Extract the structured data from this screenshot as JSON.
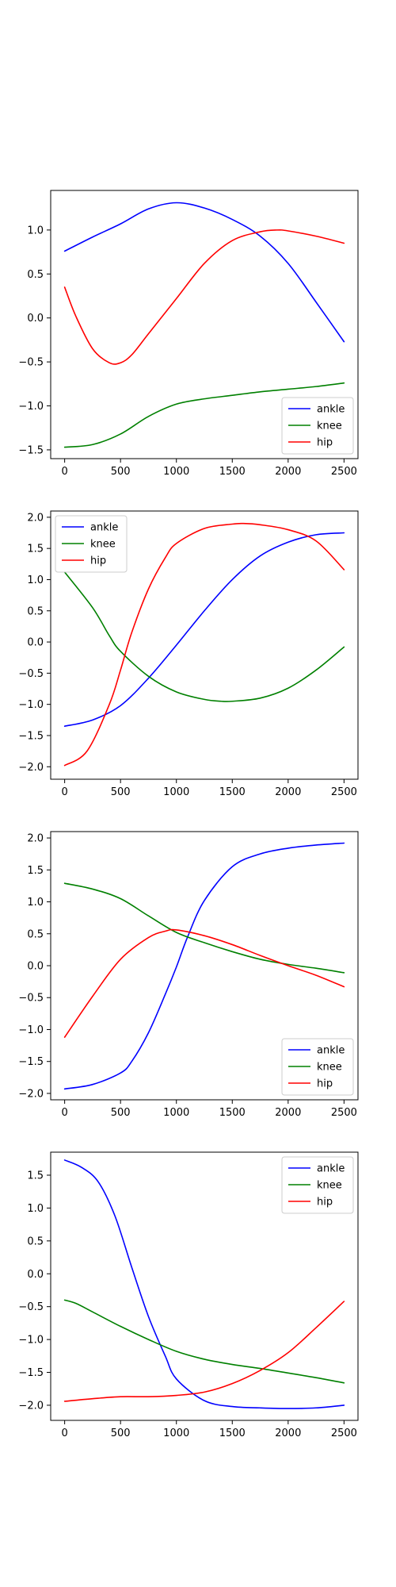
{
  "colors": {
    "ankle": "#0000ff",
    "knee": "#008000",
    "hip": "#ff0000"
  },
  "chart_data": [
    {
      "type": "line",
      "xlim": [
        -125,
        2625
      ],
      "ylim": [
        -1.6,
        1.45
      ],
      "xticks": [
        0,
        500,
        1000,
        1500,
        2000,
        2500
      ],
      "yticks": [
        -1.5,
        -1.0,
        -0.5,
        0.0,
        0.5,
        1.0
      ],
      "legend": "lower-right",
      "grid": false,
      "series": [
        {
          "name": "ankle",
          "color": "#0000ff",
          "x": [
            0,
            250,
            500,
            750,
            1000,
            1250,
            1500,
            1750,
            2000,
            2250,
            2500
          ],
          "y": [
            0.76,
            0.92,
            1.07,
            1.24,
            1.31,
            1.25,
            1.12,
            0.93,
            0.62,
            0.18,
            -0.27
          ]
        },
        {
          "name": "knee",
          "color": "#008000",
          "x": [
            0,
            250,
            500,
            750,
            1000,
            1250,
            1500,
            1750,
            2000,
            2250,
            2500
          ],
          "y": [
            -1.47,
            -1.44,
            -1.32,
            -1.12,
            -0.98,
            -0.92,
            -0.88,
            -0.84,
            -0.81,
            -0.78,
            -0.74
          ]
        },
        {
          "name": "hip",
          "color": "#ff0000",
          "x": [
            0,
            100,
            250,
            400,
            500,
            600,
            750,
            1000,
            1250,
            1500,
            1750,
            1900,
            2000,
            2250,
            2500
          ],
          "y": [
            0.35,
            0.02,
            -0.35,
            -0.51,
            -0.51,
            -0.42,
            -0.18,
            0.22,
            0.62,
            0.88,
            0.98,
            1.0,
            0.99,
            0.93,
            0.85
          ]
        }
      ]
    },
    {
      "type": "line",
      "xlim": [
        -125,
        2625
      ],
      "ylim": [
        -2.2,
        2.1
      ],
      "xticks": [
        0,
        500,
        1000,
        1500,
        2000,
        2500
      ],
      "yticks": [
        -2.0,
        -1.5,
        -1.0,
        -0.5,
        0.0,
        0.5,
        1.0,
        1.5,
        2.0
      ],
      "legend": "upper-left",
      "grid": false,
      "series": [
        {
          "name": "ankle",
          "color": "#0000ff",
          "x": [
            0,
            250,
            500,
            750,
            1000,
            1250,
            1500,
            1750,
            2000,
            2250,
            2500
          ],
          "y": [
            -1.35,
            -1.25,
            -1.02,
            -0.58,
            -0.05,
            0.5,
            1.0,
            1.38,
            1.6,
            1.72,
            1.75
          ]
        },
        {
          "name": "knee",
          "color": "#008000",
          "x": [
            0,
            250,
            400,
            500,
            750,
            1000,
            1250,
            1400,
            1500,
            1750,
            2000,
            2250,
            2500
          ],
          "y": [
            1.12,
            0.55,
            0.1,
            -0.15,
            -0.55,
            -0.8,
            -0.92,
            -0.95,
            -0.95,
            -0.9,
            -0.74,
            -0.45,
            -0.08
          ]
        },
        {
          "name": "hip",
          "color": "#ff0000",
          "x": [
            0,
            200,
            400,
            500,
            600,
            750,
            900,
            1000,
            1250,
            1500,
            1600,
            1750,
            2000,
            2250,
            2500
          ],
          "y": [
            -1.98,
            -1.75,
            -1.0,
            -0.45,
            0.15,
            0.85,
            1.35,
            1.58,
            1.82,
            1.89,
            1.9,
            1.88,
            1.8,
            1.62,
            1.16
          ]
        }
      ]
    },
    {
      "type": "line",
      "xlim": [
        -125,
        2625
      ],
      "ylim": [
        -2.1,
        2.1
      ],
      "xticks": [
        0,
        500,
        1000,
        1500,
        2000,
        2500
      ],
      "yticks": [
        -2.0,
        -1.5,
        -1.0,
        -0.5,
        0.0,
        0.5,
        1.0,
        1.5,
        2.0
      ],
      "legend": "lower-right",
      "grid": false,
      "series": [
        {
          "name": "ankle",
          "color": "#0000ff",
          "x": [
            0,
            250,
            500,
            600,
            750,
            900,
            1000,
            1100,
            1250,
            1500,
            1750,
            2000,
            2250,
            2500
          ],
          "y": [
            -1.93,
            -1.86,
            -1.68,
            -1.5,
            -1.05,
            -0.45,
            -0.02,
            0.45,
            1.02,
            1.55,
            1.75,
            1.84,
            1.89,
            1.92
          ]
        },
        {
          "name": "knee",
          "color": "#008000",
          "x": [
            0,
            250,
            500,
            750,
            1000,
            1250,
            1500,
            1750,
            2000,
            2250,
            2500
          ],
          "y": [
            1.29,
            1.2,
            1.05,
            0.78,
            0.52,
            0.36,
            0.22,
            0.1,
            0.02,
            -0.04,
            -0.11
          ]
        },
        {
          "name": "hip",
          "color": "#ff0000",
          "x": [
            0,
            250,
            500,
            750,
            900,
            1000,
            1250,
            1500,
            1750,
            2000,
            2250,
            2500
          ],
          "y": [
            -1.12,
            -0.48,
            0.1,
            0.44,
            0.54,
            0.56,
            0.47,
            0.33,
            0.16,
            0.0,
            -0.15,
            -0.33
          ]
        }
      ]
    },
    {
      "type": "line",
      "xlim": [
        -125,
        2625
      ],
      "ylim": [
        -2.23,
        1.85
      ],
      "xticks": [
        0,
        500,
        1000,
        1500,
        2000,
        2500
      ],
      "yticks": [
        -2.0,
        -1.5,
        -1.0,
        -0.5,
        0.0,
        0.5,
        1.0,
        1.5
      ],
      "legend": "upper-right",
      "grid": false,
      "series": [
        {
          "name": "ankle",
          "color": "#0000ff",
          "x": [
            0,
            150,
            300,
            450,
            600,
            750,
            900,
            1000,
            1250,
            1500,
            1750,
            2000,
            2250,
            2500
          ],
          "y": [
            1.73,
            1.62,
            1.4,
            0.88,
            0.1,
            -0.65,
            -1.25,
            -1.6,
            -1.93,
            -2.02,
            -2.04,
            -2.05,
            -2.04,
            -2.0
          ]
        },
        {
          "name": "knee",
          "color": "#008000",
          "x": [
            0,
            100,
            250,
            500,
            750,
            1000,
            1250,
            1500,
            1750,
            2000,
            2250,
            2500
          ],
          "y": [
            -0.4,
            -0.45,
            -0.58,
            -0.8,
            -1.0,
            -1.18,
            -1.3,
            -1.38,
            -1.44,
            -1.51,
            -1.58,
            -1.66
          ]
        },
        {
          "name": "hip",
          "color": "#ff0000",
          "x": [
            0,
            250,
            500,
            750,
            1000,
            1250,
            1500,
            1750,
            2000,
            2250,
            2500
          ],
          "y": [
            -1.94,
            -1.9,
            -1.87,
            -1.87,
            -1.85,
            -1.8,
            -1.67,
            -1.47,
            -1.2,
            -0.82,
            -0.42
          ]
        }
      ]
    }
  ]
}
